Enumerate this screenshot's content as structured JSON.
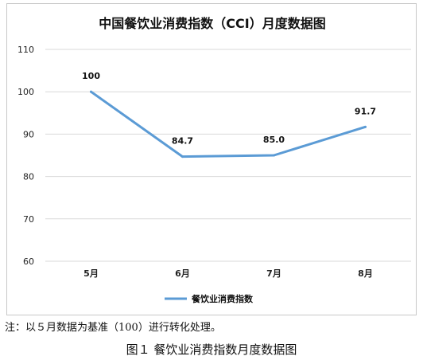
{
  "chart_data": {
    "type": "line",
    "title": "中国餐饮业消费指数（CCI）月度数据图",
    "categories": [
      "5月",
      "6月",
      "7月",
      "8月"
    ],
    "series": [
      {
        "name": "餐饮业消费指数",
        "values": [
          100,
          84.7,
          85.0,
          91.7
        ],
        "data_labels": [
          "100",
          "84.7",
          "85.0",
          "91.7"
        ],
        "color": "#5b9bd5"
      }
    ],
    "ylim": [
      60,
      110
    ],
    "yticks": [
      60,
      70,
      80,
      90,
      100,
      110
    ],
    "grid": true,
    "legend_position": "bottom"
  },
  "note": "注：以５月数据为基准（100）进行转化处理。",
  "caption": "图１ 餐饮业消费指数月度数据图"
}
